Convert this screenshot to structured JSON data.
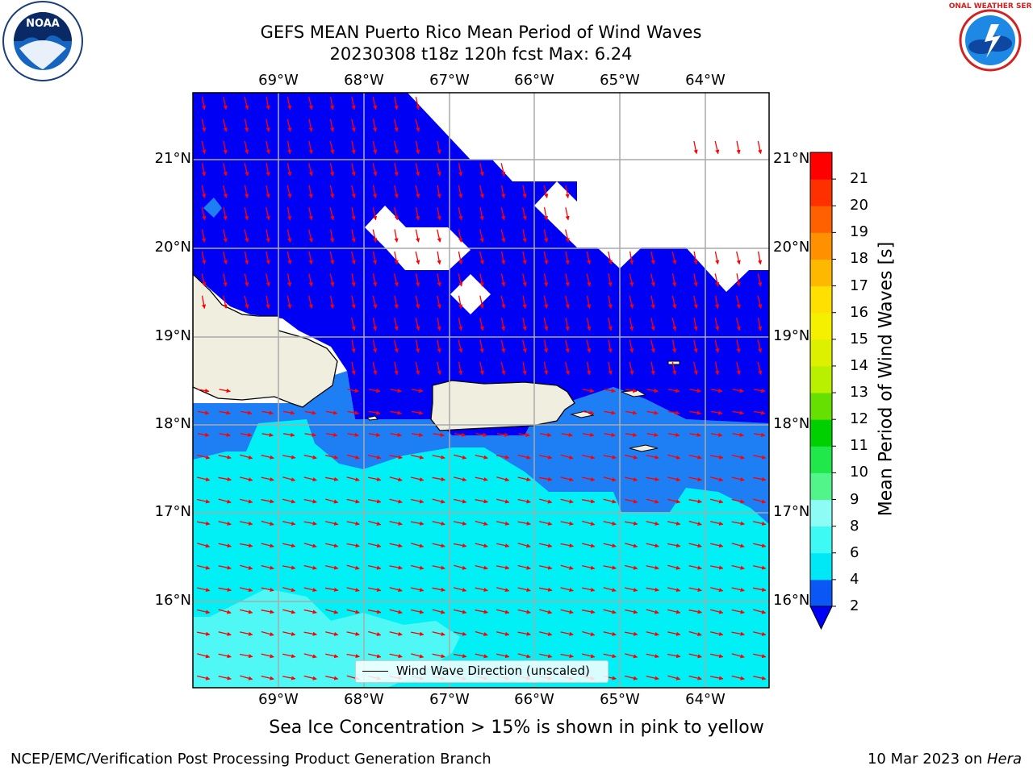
{
  "title": {
    "line1": "GEFS MEAN Puerto Rico Mean Period of Wind Waves",
    "line2": "20230308 t18z 120h fcst   Max: 6.24"
  },
  "map": {
    "lon_labels": [
      "69°W",
      "68°W",
      "67°W",
      "66°W",
      "65°W",
      "64°W"
    ],
    "lat_labels": [
      "21°N",
      "20°N",
      "19°N",
      "18°N",
      "17°N",
      "16°N"
    ],
    "legend": "Wind Wave Direction (unscaled)"
  },
  "colorbar": {
    "label": "Mean Period of Wind Waves [s]",
    "ticks": [
      "2",
      "4",
      "6",
      "8",
      "9",
      "10",
      "11",
      "12",
      "13",
      "14",
      "15",
      "16",
      "17",
      "18",
      "19",
      "20",
      "21"
    ],
    "colors": [
      "#0b57f5",
      "#00e7f5",
      "#3dfaf5",
      "#8cfcf5",
      "#52f58a",
      "#20e84a",
      "#00d000",
      "#66e000",
      "#b8f000",
      "#dcf000",
      "#f5f000",
      "#ffe000",
      "#ffb800",
      "#ff9000",
      "#ff6000",
      "#ff3000",
      "#ff0000"
    ],
    "under_color": "#0000f5"
  },
  "colors": {
    "deep_blue": "#0000f5",
    "mid_blue": "#1e7ff5",
    "cyan": "#00f0f5",
    "light_cyan": "#4ff8f5",
    "land": "#efeedf",
    "arrow": "#ff0000"
  },
  "icons": {
    "left_logo": "noaa-logo-icon",
    "right_logo": "nws-logo-icon"
  },
  "note": "Sea Ice Concentration > 15% is shown in pink to yellow",
  "footer": {
    "left": "NCEP/EMC/Verification Post Processing Product Generation Branch",
    "right_prefix": "10 Mar 2023 on ",
    "right_host": "Hera"
  }
}
